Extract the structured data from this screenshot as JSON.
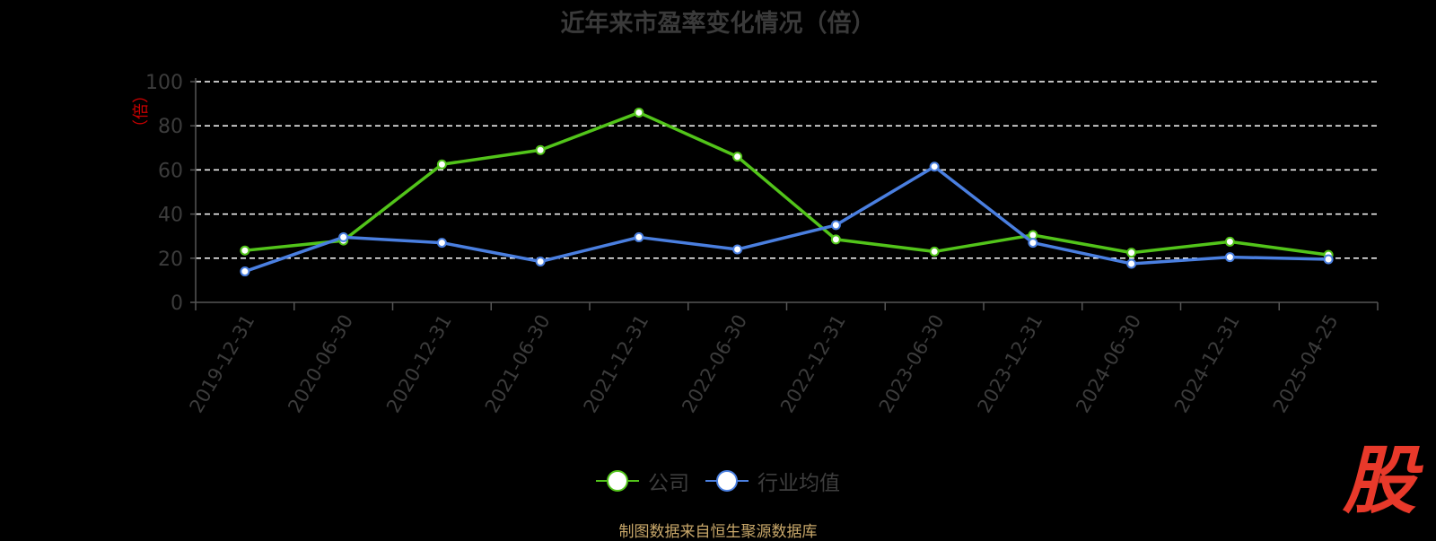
{
  "title": "近年来市盈率变化情况（倍）",
  "source": "制图数据来自恒生聚源数据库",
  "logo_text": "股",
  "chart_data": {
    "type": "line",
    "ylabel": "（倍）",
    "ylim": [
      0,
      100
    ],
    "yticks": [
      0,
      20,
      40,
      60,
      80,
      100
    ],
    "grid": true,
    "legend_position": "bottom",
    "categories": [
      "2019-12-31",
      "2020-06-30",
      "2020-12-31",
      "2021-06-30",
      "2021-12-31",
      "2022-06-30",
      "2022-12-31",
      "2023-06-30",
      "2023-12-31",
      "2024-06-30",
      "2024-12-31",
      "2025-04-25"
    ],
    "series": [
      {
        "name": "公司",
        "color": "#52c41a",
        "values": [
          23.5,
          28,
          62.5,
          69,
          86,
          66,
          28.5,
          23,
          30.5,
          22.5,
          27.5,
          21.5
        ]
      },
      {
        "name": "行业均值",
        "color": "#4a7fe0",
        "values": [
          14,
          29.5,
          27,
          18.5,
          29.5,
          24,
          35,
          61.5,
          27,
          17.5,
          20.5,
          19.5
        ]
      }
    ]
  }
}
